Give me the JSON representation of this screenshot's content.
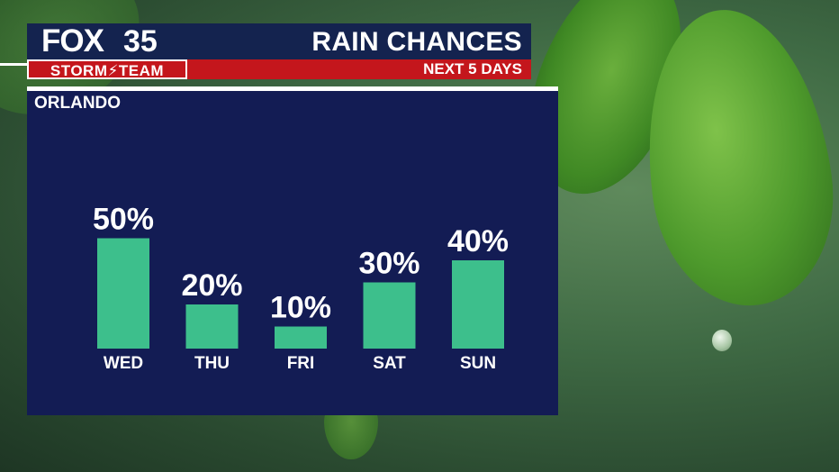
{
  "brand": {
    "logo_text": "FOX",
    "channel_number": "35",
    "team_label": "STORM⚡TEAM"
  },
  "header": {
    "title": "RAIN CHANCES",
    "subtitle": "NEXT 5 DAYS"
  },
  "location": "ORLANDO",
  "colors": {
    "panel": "#131c54",
    "bar": "#3dbf8c",
    "header_navy": "#14234f",
    "header_red": "#c4161c"
  },
  "chart_data": {
    "type": "bar",
    "title": "RAIN CHANCES",
    "categories": [
      "WED",
      "THU",
      "FRI",
      "SAT",
      "SUN"
    ],
    "values": [
      50,
      20,
      10,
      30,
      40
    ],
    "value_labels": [
      "50%",
      "20%",
      "10%",
      "30%",
      "40%"
    ],
    "ylim": [
      0,
      100
    ],
    "grid": false,
    "legend": "none"
  }
}
